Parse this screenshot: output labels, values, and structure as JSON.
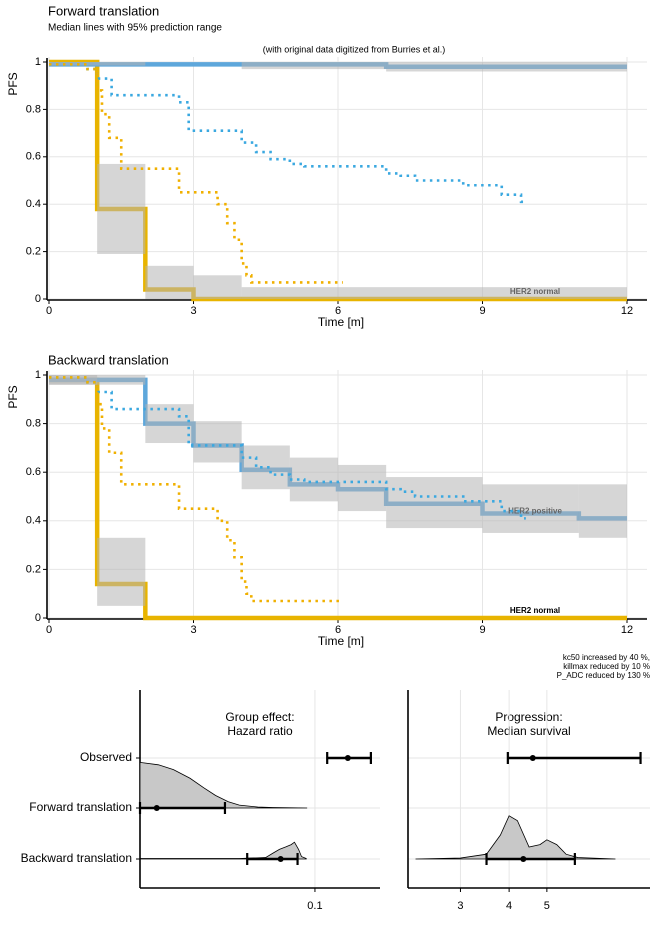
{
  "chart_data": [
    {
      "type": "line",
      "title": "Forward translation",
      "subtitle": "Median lines with 95% prediction range",
      "annotation": "(with original data digitized from Burries et al.)",
      "xlabel": "Time [m]",
      "ylabel": "PFS",
      "xlim": [
        0,
        12
      ],
      "ylim": [
        0,
        1
      ],
      "xticks": [
        0,
        3,
        6,
        9,
        12
      ],
      "yticks": [
        0,
        0.2,
        0.4,
        0.6,
        0.8,
        1
      ],
      "grid": true,
      "step": true,
      "band_color": "#b5b5b5",
      "bands": [
        {
          "x": [
            1,
            2
          ],
          "low": 0.19,
          "high": 0.57
        },
        {
          "x": [
            2,
            3
          ],
          "low": 0,
          "high": 0.14
        },
        {
          "x": [
            3,
            4
          ],
          "low": 0,
          "high": 0.1
        },
        {
          "x": [
            4,
            12
          ],
          "low": 0,
          "high": 0.05
        },
        {
          "x": [
            0,
            2
          ],
          "low": 0.985,
          "high": 1
        },
        {
          "x": [
            4,
            7
          ],
          "low": 0.97,
          "high": 1
        },
        {
          "x": [
            7,
            12
          ],
          "low": 0.96,
          "high": 1
        }
      ],
      "series": [
        {
          "color": "#e8b400",
          "style": "solid",
          "label": "HER2 normal",
          "x": [
            0,
            1,
            2,
            3,
            12
          ],
          "values": [
            1,
            0.38,
            0.04,
            0,
            0
          ]
        },
        {
          "color": "#5ea7db",
          "style": "solid",
          "x": [
            0,
            7,
            12
          ],
          "values": [
            0.99,
            0.98,
            0.98
          ]
        },
        {
          "color": "#3aa8e0",
          "style": "dotted",
          "x": [
            0,
            0.8,
            1.0,
            1.3,
            2.7,
            2.9,
            4.0,
            4.3,
            4.6,
            5.0,
            5.3,
            7.0,
            7.3,
            7.6,
            8.6,
            9.4,
            9.8,
            9.9
          ],
          "values": [
            0.99,
            0.97,
            0.93,
            0.86,
            0.83,
            0.71,
            0.66,
            0.62,
            0.59,
            0.57,
            0.56,
            0.53,
            0.52,
            0.5,
            0.48,
            0.44,
            0.41,
            0.41
          ]
        },
        {
          "color": "#f0b000",
          "style": "dotted",
          "x": [
            0,
            0.8,
            1.0,
            1.1,
            1.25,
            1.5,
            2.7,
            3.5,
            3.7,
            3.85,
            4.0,
            4.1,
            4.2,
            6.1
          ],
          "values": [
            0.99,
            0.97,
            0.88,
            0.78,
            0.68,
            0.55,
            0.45,
            0.4,
            0.32,
            0.25,
            0.15,
            0.1,
            0.07,
            0.07
          ]
        }
      ]
    },
    {
      "type": "line",
      "title": "Backward translation",
      "xlabel": "Time [m]",
      "ylabel": "PFS",
      "xlim": [
        0,
        12
      ],
      "ylim": [
        0,
        1
      ],
      "xticks": [
        0,
        3,
        6,
        9,
        12
      ],
      "yticks": [
        0,
        0.2,
        0.4,
        0.6,
        0.8,
        1
      ],
      "grid": true,
      "step": true,
      "band_color": "#b5b5b5",
      "notes": [
        "kc50 increased by 40 %,",
        "killmax reduced by 10 %",
        "P_ADC reduced by 130 %"
      ],
      "bands": [
        {
          "x": [
            0,
            1
          ],
          "low": 0.96,
          "high": 1
        },
        {
          "x": [
            1,
            2
          ],
          "low": 0.05,
          "high": 0.33
        },
        {
          "x": [
            0,
            2
          ],
          "low": 0.96,
          "high": 1
        },
        {
          "x": [
            2,
            3
          ],
          "low": 0.72,
          "high": 0.88
        },
        {
          "x": [
            3,
            4
          ],
          "low": 0.64,
          "high": 0.81
        },
        {
          "x": [
            4,
            5
          ],
          "low": 0.53,
          "high": 0.71
        },
        {
          "x": [
            5,
            6
          ],
          "low": 0.48,
          "high": 0.66
        },
        {
          "x": [
            6,
            7
          ],
          "low": 0.44,
          "high": 0.63
        },
        {
          "x": [
            7,
            9
          ],
          "low": 0.37,
          "high": 0.58
        },
        {
          "x": [
            9,
            11
          ],
          "low": 0.35,
          "high": 0.55
        },
        {
          "x": [
            11,
            12
          ],
          "low": 0.33,
          "high": 0.55
        }
      ],
      "series": [
        {
          "color": "#e8b400",
          "style": "solid",
          "label": "HER2 normal",
          "x": [
            0,
            1,
            2,
            12
          ],
          "values": [
            0.98,
            0.14,
            0,
            0
          ]
        },
        {
          "color": "#5ea7db",
          "style": "solid",
          "label": "HER2 positive",
          "x": [
            0,
            2,
            3,
            4,
            5,
            6,
            7,
            9,
            11,
            12
          ],
          "values": [
            0.98,
            0.8,
            0.71,
            0.61,
            0.55,
            0.53,
            0.47,
            0.43,
            0.41,
            0.41
          ]
        },
        {
          "color": "#3aa8e0",
          "style": "dotted",
          "x": [
            0,
            0.8,
            1.0,
            1.3,
            2.7,
            2.9,
            4.0,
            4.3,
            4.6,
            5.0,
            5.3,
            7.0,
            7.3,
            7.6,
            8.6,
            9.4,
            9.8,
            9.9
          ],
          "values": [
            0.99,
            0.97,
            0.93,
            0.86,
            0.83,
            0.71,
            0.66,
            0.62,
            0.59,
            0.57,
            0.56,
            0.53,
            0.52,
            0.5,
            0.48,
            0.44,
            0.41,
            0.41
          ]
        },
        {
          "color": "#f0b000",
          "style": "dotted",
          "x": [
            0,
            0.8,
            1.0,
            1.1,
            1.25,
            1.5,
            2.7,
            3.5,
            3.7,
            3.85,
            4.0,
            4.1,
            4.2,
            6.1
          ],
          "values": [
            0.99,
            0.97,
            0.88,
            0.78,
            0.68,
            0.55,
            0.45,
            0.4,
            0.32,
            0.25,
            0.15,
            0.1,
            0.07,
            0.07
          ]
        }
      ]
    },
    {
      "type": "interval",
      "title": [
        "Group effect:",
        "Hazard ratio"
      ],
      "categories": [
        "Observed",
        "Forward translation",
        "Backward translation"
      ],
      "xscale": "log",
      "xlim": [
        0.012,
        0.22
      ],
      "xticks": [
        0.1
      ],
      "grid": true,
      "values": [
        0.149,
        0.0147,
        0.066
      ],
      "low": [
        0.116,
        0.012,
        0.044
      ],
      "high": [
        0.197,
        0.0336,
        0.081
      ],
      "densities": [
        null,
        {
          "x": [
            0.012,
            0.015,
            0.018,
            0.022,
            0.026,
            0.03,
            0.035,
            0.04,
            0.05,
            0.06,
            0.091
          ],
          "values": [
            0.95,
            0.9,
            0.8,
            0.62,
            0.42,
            0.26,
            0.13,
            0.06,
            0.02,
            0.01,
            0
          ]
        },
        {
          "x": [
            0.012,
            0.04,
            0.055,
            0.06,
            0.065,
            0.07,
            0.075,
            0.078,
            0.082,
            0.085,
            0.09
          ],
          "values": [
            0.01,
            0.01,
            0.03,
            0.12,
            0.2,
            0.25,
            0.3,
            0.35,
            0.2,
            0.05,
            0.01
          ]
        }
      ]
    },
    {
      "type": "interval",
      "title": [
        "Progression:",
        "Median survival"
      ],
      "xscale": "log",
      "xlim": [
        2.2,
        9.2
      ],
      "xticks": [
        3,
        4,
        5
      ],
      "grid": true,
      "values": [
        4.6,
        null,
        4.35
      ],
      "low": [
        3.97,
        null,
        3.5
      ],
      "high": [
        8.7,
        null,
        5.9
      ],
      "densities": [
        null,
        null,
        {
          "x": [
            2.3,
            3,
            3.5,
            3.8,
            4,
            4.2,
            4.5,
            4.8,
            5,
            5.3,
            5.6,
            6,
            7.5
          ],
          "values": [
            0,
            0.02,
            0.1,
            0.5,
            0.9,
            0.8,
            0.25,
            0.3,
            0.4,
            0.3,
            0.1,
            0.03,
            0
          ]
        }
      ]
    }
  ]
}
